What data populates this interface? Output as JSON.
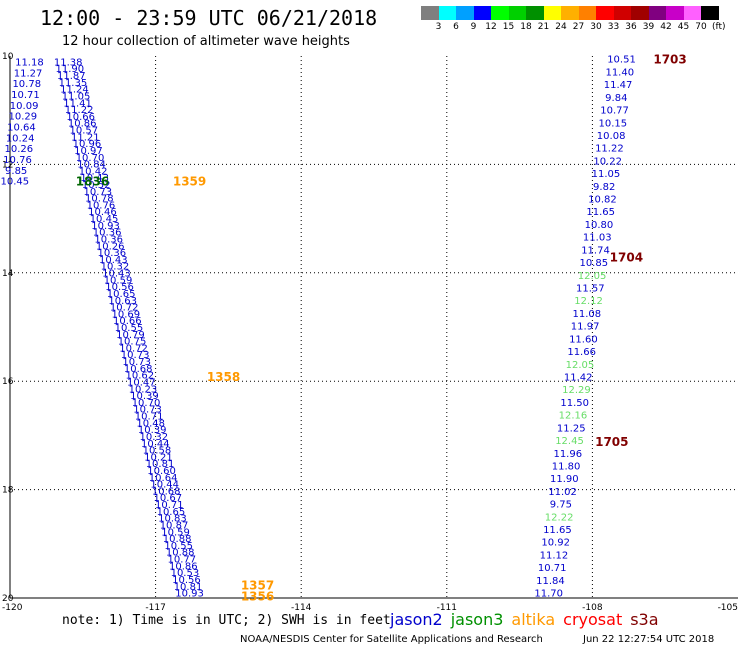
{
  "header": {
    "title": "12:00 - 23:59 UTC 06/21/2018",
    "subtitle": "12 hour collection of altimeter wave heights"
  },
  "colorbar": {
    "colors": [
      "#7f7f7f",
      "#00ffff",
      "#00a0ff",
      "#0000ff",
      "#00ff00",
      "#00d000",
      "#009000",
      "#ffff00",
      "#ffb000",
      "#ff8000",
      "#ff0000",
      "#d00000",
      "#a00000",
      "#800080",
      "#c800c8",
      "#ff60ff",
      "#000000"
    ],
    "labels": [
      "3",
      "6",
      "9",
      "12",
      "15",
      "18",
      "21",
      "24",
      "27",
      "30",
      "33",
      "36",
      "39",
      "42",
      "45",
      "70"
    ],
    "unit": "(ft)"
  },
  "footer": {
    "note": "note: 1) Time is in UTC; 2) SWH is in feet",
    "credit": "NOAA/NESDIS Center for Satellite Applications and Research",
    "timestamp": "Jun 22 12:27:54 UTC 2018"
  },
  "legend": [
    {
      "name": "jason2",
      "color": "#0000cc"
    },
    {
      "name": "jason3",
      "color": "#009000"
    },
    {
      "name": "altika",
      "color": "#ff9900"
    },
    {
      "name": "cryosat",
      "color": "#ff0000"
    },
    {
      "name": "s3a",
      "color": "#800000"
    }
  ],
  "colors": {
    "jason2": "#0000cc",
    "jason3_text": "#006600",
    "jason3_light": "#66dd66",
    "altika": "#ff9900",
    "cryosat": "#800000",
    "grid": "#000000"
  },
  "chart_data": {
    "type": "scatter",
    "xlim": [
      -120,
      -105
    ],
    "ylim": [
      20,
      10
    ],
    "xticks": [
      -120,
      -117,
      -114,
      -111,
      -108,
      -105
    ],
    "xtick_labels": [
      "-120",
      "-117",
      "-114",
      "-111",
      "-108",
      "-105"
    ],
    "yticks": [
      10,
      12,
      14,
      16,
      18,
      20
    ],
    "ytick_labels": [
      "10",
      "12",
      "14",
      "16",
      "18",
      "20"
    ],
    "grid": true,
    "swath_west": {
      "satellite": "jason2",
      "lon_start": -119.6,
      "lat_start": 10.1,
      "lon_end": -119.9,
      "lat_end": 12.3,
      "values": [
        "11.18",
        "11.27",
        "10.78",
        "10.71",
        "10.09",
        "10.29",
        "10.64",
        "10.24",
        "10.26",
        "10.76",
        "9.85",
        "10.45"
      ]
    },
    "swath_east": {
      "satellite": "jason2",
      "lon_start": -118.8,
      "lat_start": 10.1,
      "lon_end": -116.3,
      "lat_end": 19.9,
      "values": [
        "11.38",
        "11.90",
        "11.87",
        "11.35",
        "11.24",
        "11.05",
        "11.41",
        "11.22",
        "10.66",
        "10.86",
        "10.57",
        "11.21",
        "10.96",
        "10.97",
        "10.70",
        "10.84",
        "10.42",
        "10.43",
        "10.52",
        "10.73",
        "10.78",
        "10.76",
        "10.46",
        "10.45",
        "10.93",
        "10.36",
        "10.36",
        "10.26",
        "10.36",
        "10.43",
        "10.32",
        "10.43",
        "10.59",
        "10.56",
        "10.65",
        "10.63",
        "10.72",
        "10.69",
        "10.66",
        "10.55",
        "10.79",
        "10.75",
        "10.72",
        "10.73",
        "10.73",
        "10.68",
        "10.62",
        "10.47",
        "10.23",
        "10.39",
        "10.70",
        "10.73",
        "10.71",
        "10.48",
        "10.39",
        "10.32",
        "10.44",
        "10.58",
        "10.21",
        "10.81",
        "10.60",
        "10.64",
        "10.44",
        "10.68",
        "10.67",
        "10.71",
        "10.65",
        "10.83",
        "10.87",
        "10.59",
        "10.88",
        "10.55",
        "10.88",
        "10.77",
        "10.86",
        "10.53",
        "10.56",
        "10.81",
        "10.93"
      ]
    },
    "swath_pass2": {
      "satellite": "jason2",
      "lon_start": -107.4,
      "lat_start": 10.05,
      "lon_end": -108.9,
      "lat_end": 19.9,
      "values": [
        "10.51",
        "11.40",
        "11.47",
        "9.84",
        "10.77",
        "10.15",
        "10.08",
        "11.22",
        "10.22",
        "11.05",
        "9.82",
        "10.82",
        "11.65",
        "10.80",
        "11.03",
        "11.74",
        "10.85",
        "12.05",
        "11.57",
        "12.12",
        "11.08",
        "11.97",
        "11.60",
        "11.66",
        "12.05",
        "11.42",
        "12.29",
        "11.50",
        "12.16",
        "11.25",
        "12.45",
        "11.96",
        "11.80",
        "11.90",
        "11.02",
        "9.75",
        "12.22",
        "11.65",
        "10.92",
        "11.12",
        "10.71",
        "11.84",
        "11.70"
      ],
      "light_indices": [
        17,
        19,
        24,
        26,
        28,
        30,
        36
      ]
    },
    "time_labels": [
      {
        "text": "1836",
        "lon": -118.3,
        "lat": 12.3,
        "satellite": "jason3"
      },
      {
        "text": "1359",
        "lon": -116.3,
        "lat": 12.3,
        "satellite": "altika"
      },
      {
        "text": "1358",
        "lon": -115.6,
        "lat": 15.9,
        "satellite": "altika"
      },
      {
        "text": "1357",
        "lon": -114.9,
        "lat": 19.75,
        "satellite": "altika"
      },
      {
        "text": "1356",
        "lon": -114.9,
        "lat": 19.95,
        "satellite": "altika"
      },
      {
        "text": "1703",
        "lon": -106.4,
        "lat": 10.05,
        "satellite": "cryosat"
      },
      {
        "text": "1704",
        "lon": -107.3,
        "lat": 13.7,
        "satellite": "cryosat"
      },
      {
        "text": "1705",
        "lon": -107.6,
        "lat": 17.1,
        "satellite": "cryosat"
      }
    ]
  }
}
